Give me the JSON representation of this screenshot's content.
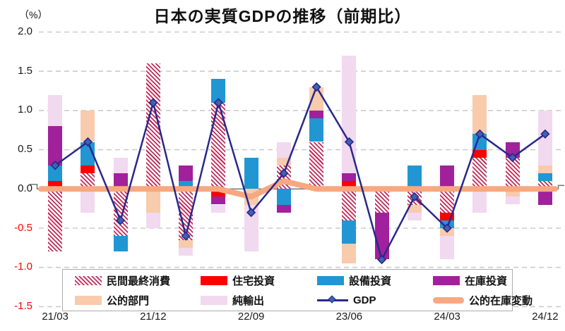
{
  "chart_data": {
    "type": "bar",
    "subtype": "stacked-bar-with-lines",
    "title": "日本の実質GDPの推移（前期比）",
    "unit_label": "（%）",
    "ylim": [
      -1.5,
      2.0
    ],
    "y_ticks": [
      2.0,
      1.5,
      1.0,
      0.5,
      0.0,
      -0.5,
      -1.0,
      -1.5
    ],
    "grid": "dashed-horizontal",
    "categories": [
      "21/03",
      "21/06",
      "21/09",
      "21/12",
      "22/03",
      "22/06",
      "22/09",
      "22/12",
      "23/03",
      "23/06",
      "23/09",
      "23/12",
      "24/03",
      "24/06",
      "24/09",
      "24/12"
    ],
    "x_ticks": [
      {
        "index": 0,
        "label": "21/03"
      },
      {
        "index": 3,
        "label": "21/12"
      },
      {
        "index": 6,
        "label": "22/09"
      },
      {
        "index": 9,
        "label": "23/06"
      },
      {
        "index": 12,
        "label": "24/03"
      },
      {
        "index": 15,
        "label": "24/12"
      }
    ],
    "bar_series": [
      {
        "key": "private-consumption",
        "name": "民間最終消費",
        "pattern": "hatch",
        "color": "#c02a58",
        "values": [
          -0.8,
          0.2,
          -0.6,
          1.6,
          -0.65,
          1.1,
          0,
          0.3,
          0.6,
          -0.4,
          -0.3,
          -0.2,
          -0.3,
          0.4,
          0.4,
          0.1
        ]
      },
      {
        "key": "housing-investment",
        "name": "住宅投資",
        "pattern": "fill",
        "color": "#ff0000",
        "values": [
          0.1,
          0.1,
          0,
          0,
          0,
          -0.1,
          0,
          0,
          0,
          0.1,
          0,
          0,
          -0.1,
          0.1,
          0,
          0
        ]
      },
      {
        "key": "capital-investment",
        "name": "設備投資",
        "pattern": "fill",
        "color": "#2196d3",
        "values": [
          0.2,
          0.3,
          -0.2,
          0,
          0.1,
          0.3,
          0.4,
          -0.2,
          0.3,
          -0.3,
          0,
          0.3,
          -0.1,
          0.2,
          0,
          0.1
        ]
      },
      {
        "key": "inventory-investment",
        "name": "在庫投資",
        "pattern": "fill",
        "color": "#a0219b",
        "values": [
          0.5,
          0,
          0.2,
          0,
          0.2,
          -0.1,
          0,
          -0.1,
          0.1,
          0.1,
          -0.6,
          0,
          0.3,
          0,
          0.2,
          -0.2
        ]
      },
      {
        "key": "public-sector",
        "name": "公的部門",
        "pattern": "fill",
        "color": "#f8cbad",
        "values": [
          0,
          0.4,
          0,
          -0.3,
          -0.1,
          0,
          -0.2,
          0.1,
          0.3,
          -0.25,
          0,
          -0.1,
          -0.1,
          0.5,
          -0.1,
          0.1
        ]
      },
      {
        "key": "net-exports",
        "name": "純輸出",
        "pattern": "fill",
        "color": "#f1d9f0",
        "values": [
          0.4,
          -0.3,
          0.2,
          -0.2,
          -0.1,
          -0.1,
          -0.6,
          0.2,
          0,
          1.5,
          0,
          -0.1,
          -0.3,
          -0.3,
          -0.1,
          0.7
        ]
      }
    ],
    "line_series": [
      {
        "key": "public-inventory-change",
        "name": "公的在庫変動",
        "color": "#f7a880",
        "width": 8,
        "marker": "none",
        "extend_to_edges": true,
        "values": [
          0,
          0,
          0,
          0,
          0,
          0,
          -0.1,
          0.1,
          0,
          0,
          0,
          0,
          0,
          0,
          0,
          0
        ]
      },
      {
        "key": "gdp",
        "name": "GDP",
        "color": "#28288c",
        "width": 2.5,
        "marker": "diamond",
        "marker_fill": "#3f62b0",
        "extend_to_edges": false,
        "values": [
          0.3,
          0.6,
          -0.4,
          1.1,
          -0.6,
          1.1,
          -0.3,
          0.2,
          1.3,
          0.6,
          -0.9,
          -0.1,
          -0.5,
          0.7,
          0.4,
          0.7
        ]
      }
    ],
    "axis_colors": {
      "positive_tick": "#1a1a1a",
      "negative_tick": "#ff0000",
      "zero_line": "#7f7f7f",
      "gridline": "#cccccc"
    }
  },
  "legend": {
    "position": "bottom-inside",
    "items": [
      {
        "key": "private-consumption",
        "label": "民間最終消費",
        "swatch": "hatch",
        "color": "#c02a58"
      },
      {
        "key": "housing-investment",
        "label": "住宅投資",
        "swatch": "fill",
        "color": "#ff0000"
      },
      {
        "key": "capital-investment",
        "label": "設備投資",
        "swatch": "fill",
        "color": "#2196d3"
      },
      {
        "key": "inventory-investment",
        "label": "在庫投資",
        "swatch": "fill",
        "color": "#a0219b"
      },
      {
        "key": "public-sector",
        "label": "公的部門",
        "swatch": "fill",
        "color": "#f8cbad"
      },
      {
        "key": "net-exports",
        "label": "純輸出",
        "swatch": "fill",
        "color": "#f1d9f0"
      },
      {
        "key": "gdp",
        "label": "GDP",
        "swatch": "line-diamond",
        "color": "#28288c"
      },
      {
        "key": "public-inventory-change",
        "label": "公的在庫変動",
        "swatch": "capsule",
        "color": "#f7a880"
      }
    ]
  }
}
